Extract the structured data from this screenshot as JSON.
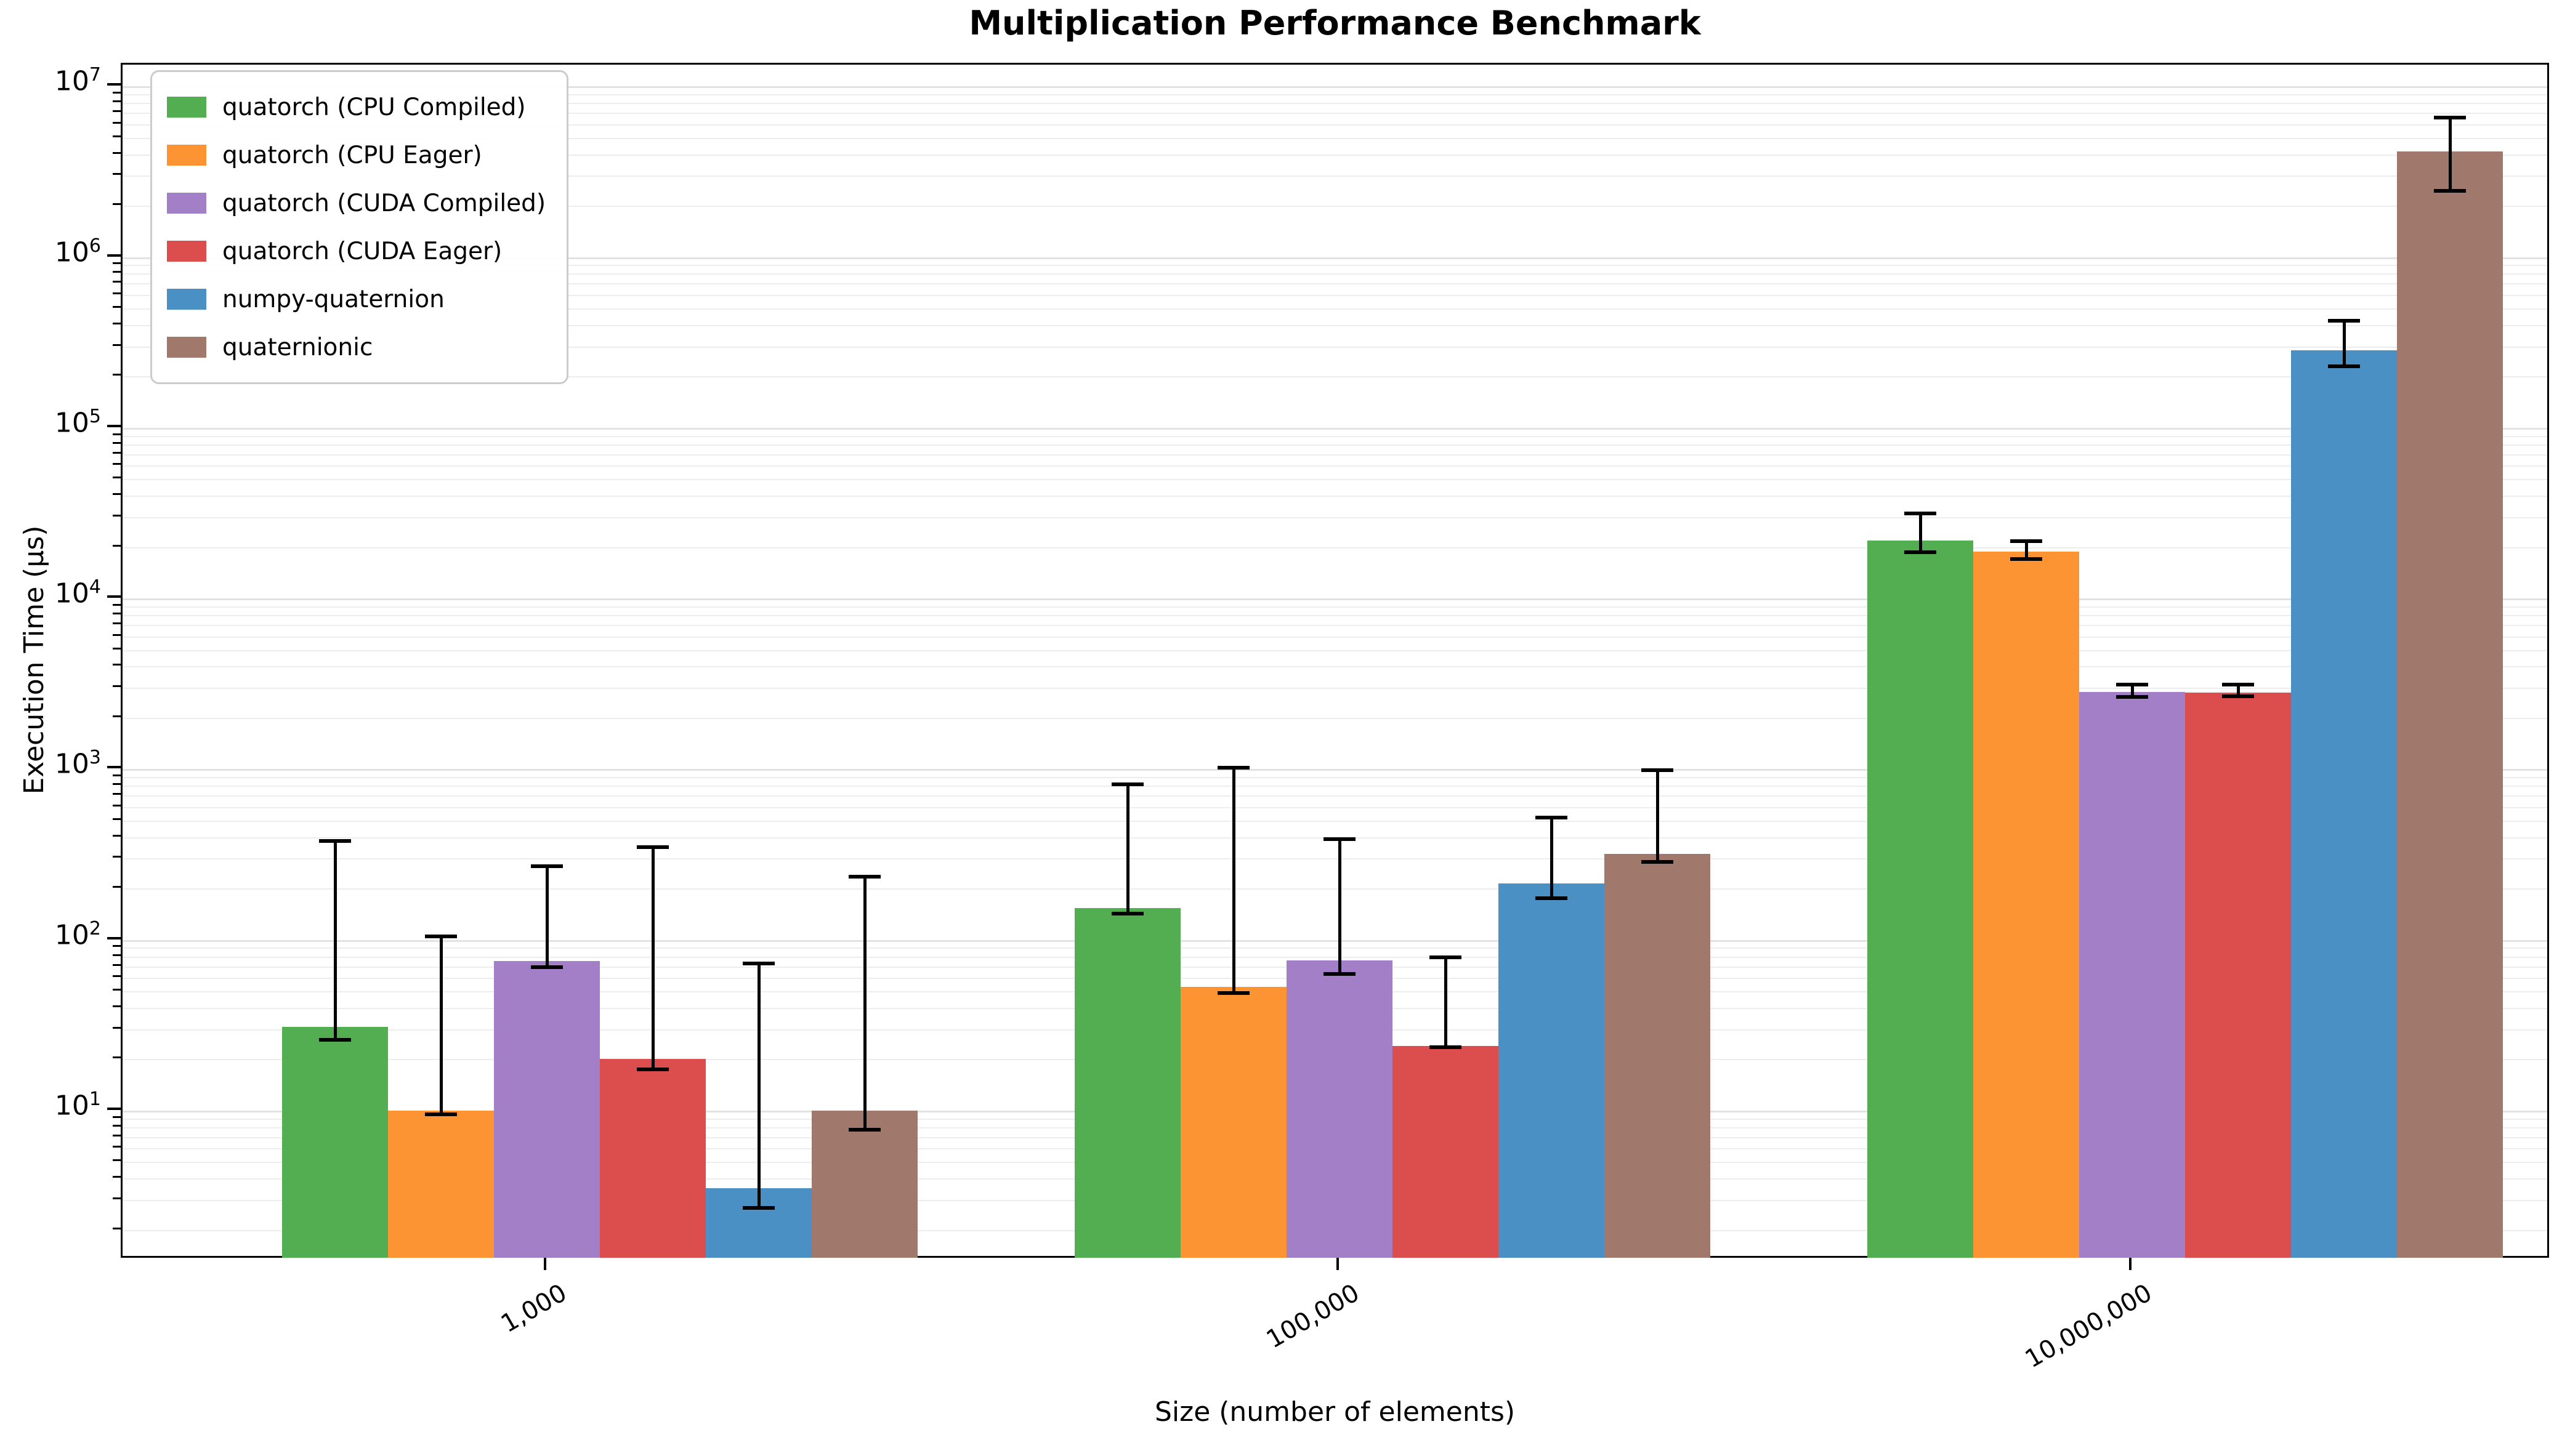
{
  "chart_data": {
    "type": "bar",
    "title": "Multiplication Performance Benchmark",
    "xlabel": "Size (number of elements)",
    "ylabel": "Execution Time (µs)",
    "yscale": "log",
    "ylim": [
      1.34,
      13400000
    ],
    "y_tick_exponents": [
      1,
      2,
      3,
      4,
      5,
      6,
      7
    ],
    "grid": true,
    "legend_position": "upper-left",
    "categories": [
      "1,000",
      "100,000",
      "10,000,000"
    ],
    "series": [
      {
        "name": "quatorch (CPU Compiled)",
        "color": "#53ae51",
        "values": [
          31,
          154,
          21800
        ],
        "err_low": [
          26,
          142,
          18700
        ],
        "err_high": [
          380,
          815,
          31500
        ]
      },
      {
        "name": "quatorch (CPU Eager)",
        "color": "#fd9434",
        "values": [
          10,
          53,
          18800
        ],
        "err_low": [
          9.5,
          49,
          17000
        ],
        "err_high": [
          105,
          1020,
          21700
        ]
      },
      {
        "name": "quatorch (CUDA Compiled)",
        "color": "#a27fc7",
        "values": [
          75,
          76,
          2830
        ],
        "err_low": [
          69,
          63,
          2650
        ],
        "err_high": [
          270,
          390,
          3130
        ]
      },
      {
        "name": "quatorch (CUDA Eager)",
        "color": "#dc4e4e",
        "values": [
          20,
          24,
          2810
        ],
        "err_low": [
          17.5,
          23.5,
          2670
        ],
        "err_high": [
          350,
          79,
          3140
        ]
      },
      {
        "name": "numpy-quaternion",
        "color": "#4b90c4",
        "values": [
          3.5,
          214,
          285000
        ],
        "err_low": [
          2.7,
          176,
          230000
        ],
        "err_high": [
          73,
          520,
          425000
        ]
      },
      {
        "name": "quaternionic",
        "color": "#a1786c",
        "values": [
          10,
          320,
          4150000
        ],
        "err_low": [
          7.7,
          286,
          2450000
        ],
        "err_high": [
          235,
          985,
          6550000
        ]
      }
    ]
  }
}
